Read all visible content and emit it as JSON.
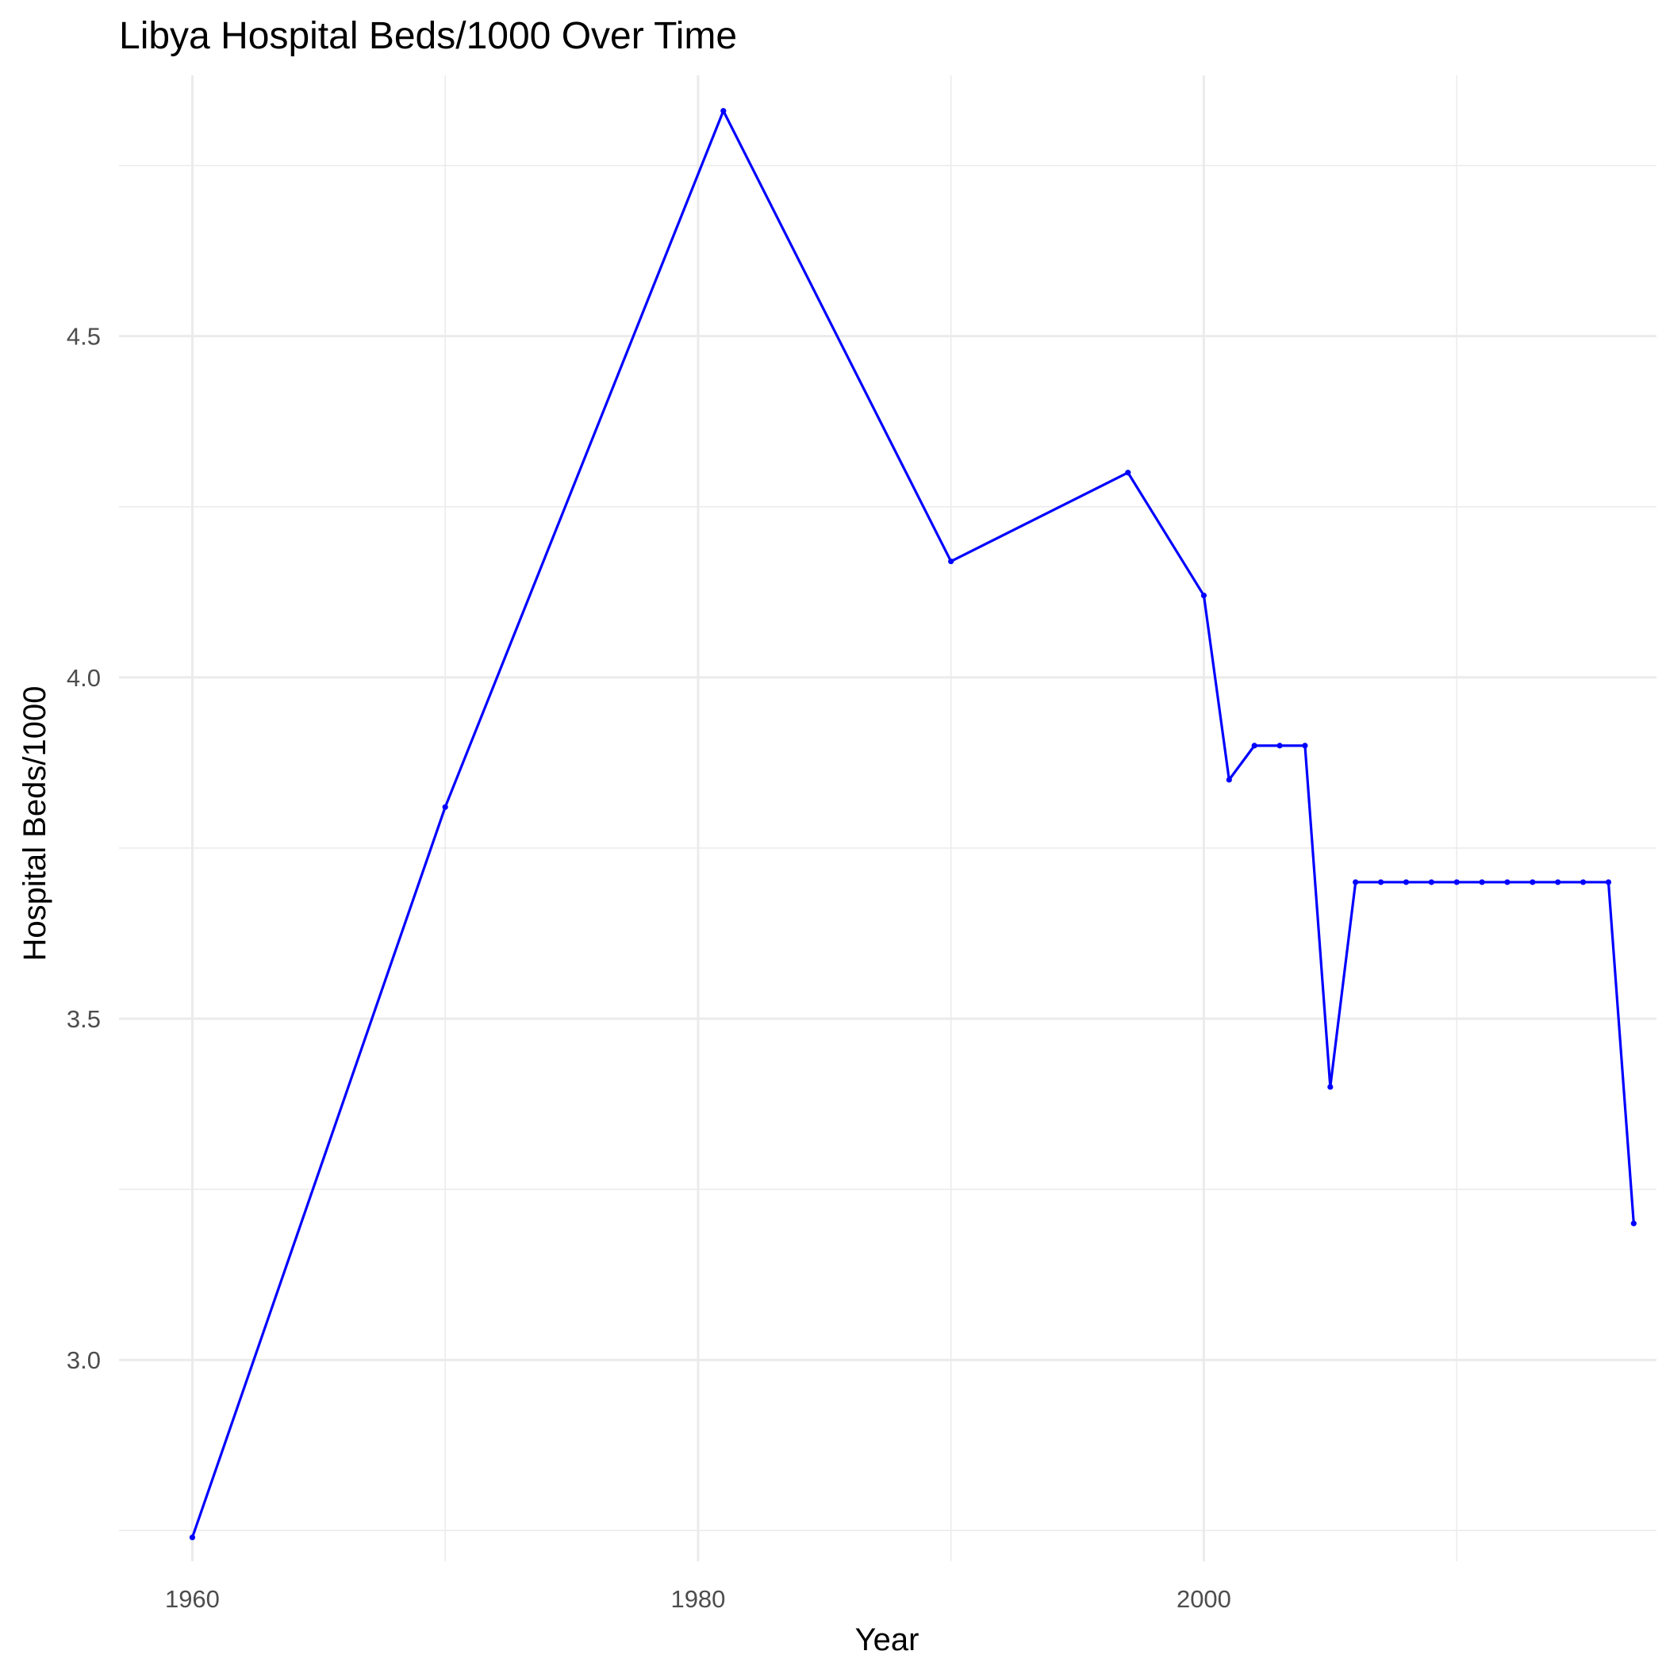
{
  "chart_data": {
    "type": "line",
    "title": "Libya Hospital Beds/1000 Over Time",
    "xlabel": "Year",
    "ylabel": "Hospital Beds/1000",
    "x_ticks": [
      "1960",
      "1980",
      "2000"
    ],
    "y_ticks": [
      "3.0",
      "3.5",
      "4.0",
      "4.5"
    ],
    "xlim": [
      1957.1,
      2017.9
    ],
    "ylim": [
      2.705,
      4.882
    ],
    "grid": true,
    "legend": "none",
    "series": [
      {
        "color": "#0000ff",
        "x": [
          1960,
          1970,
          1981,
          1990,
          1997,
          2000,
          2001,
          2002,
          2003,
          2004,
          2005,
          2006,
          2007,
          2008,
          2009,
          2010,
          2011,
          2012,
          2013,
          2014,
          2015,
          2016,
          2017
        ],
        "y": [
          2.74,
          3.81,
          4.83,
          4.17,
          4.3,
          4.12,
          3.85,
          3.9,
          3.9,
          3.9,
          3.4,
          3.7,
          3.7,
          3.7,
          3.7,
          3.7,
          3.7,
          3.7,
          3.7,
          3.7,
          3.7,
          3.7,
          3.2
        ]
      }
    ]
  }
}
